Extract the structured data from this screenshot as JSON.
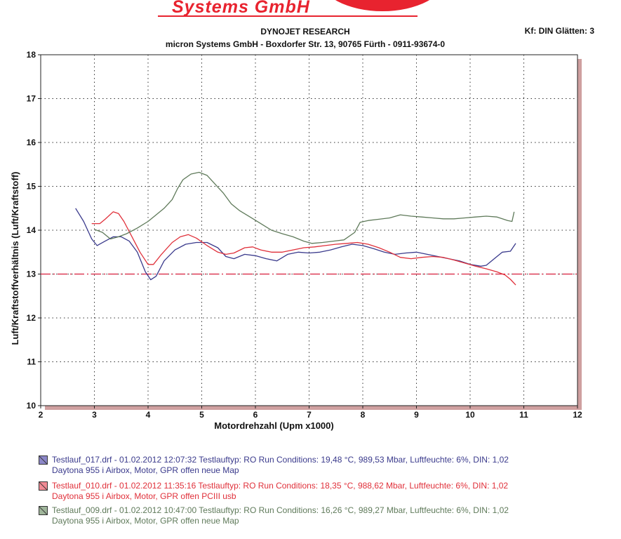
{
  "header": {
    "logo_text": "Systems GmbH",
    "title": "DYNOJET RESEARCH",
    "subtitle": "micron Systems GmbH - Boxdorfer Str. 13, 90765 Fürth - 0911-93674-0",
    "kf": "Kf: DIN  Glätten: 3"
  },
  "colors": {
    "series_blue": "#3a3a8c",
    "series_red": "#e0303a",
    "series_green": "#5f7a5a",
    "reference": "#d81e3c",
    "frame": "#cfa0a0"
  },
  "legend": [
    {
      "line1": "Testlauf_017.drf - 01.02.2012 12:07:32  Testlauftyp: RO  Run Conditions: 19,48 °C, 989,53 Mbar,  Luftfeuchte: 6%, DIN: 1,02",
      "line2": "Daytona 955 i Airbox, Motor, GPR offen neue Map",
      "color": "#3a3a8c",
      "swatch": "#8c87c8"
    },
    {
      "line1": "Testlauf_010.drf - 01.02.2012 11:35:16  Testlauftyp: RO  Run Conditions: 18,35 °C, 988,62 Mbar,  Luftfeuchte: 6%, DIN: 1,02",
      "line2": "Daytona 955 i Airbox, Motor, GPR offen PCIII usb",
      "color": "#e0303a",
      "swatch": "#f08a94"
    },
    {
      "line1": "Testlauf_009.drf - 01.02.2012 10:47:00  Testlauftyp: RO  Run Conditions: 16,26 °C, 989,27 Mbar,  Luftfeuchte: 6%, DIN: 1,02",
      "line2": "Daytona 955 i Airbox, Motor, GPR offen neue Map",
      "color": "#5f7a5a",
      "swatch": "#9fb59a"
    }
  ],
  "chart_data": {
    "type": "line",
    "xlabel": "Motordrehzahl (Upm x1000)",
    "ylabel": "Luft/Kraftstoffverhältnis (Luft/Kraftstoff)",
    "xlim": [
      2,
      12
    ],
    "ylim": [
      10,
      18
    ],
    "xticks": [
      2,
      3,
      4,
      5,
      6,
      7,
      8,
      9,
      10,
      11,
      12
    ],
    "yticks": [
      10,
      11,
      12,
      13,
      14,
      15,
      16,
      17,
      18
    ],
    "grid": true,
    "reference_line": {
      "y": 13.0,
      "style": "dash-dot"
    },
    "series": [
      {
        "name": "Testlauf_017",
        "color": "#3a3a8c",
        "points": [
          [
            2.65,
            14.5
          ],
          [
            2.8,
            14.2
          ],
          [
            2.95,
            13.8
          ],
          [
            3.05,
            13.65
          ],
          [
            3.2,
            13.75
          ],
          [
            3.35,
            13.85
          ],
          [
            3.5,
            13.85
          ],
          [
            3.65,
            13.75
          ],
          [
            3.8,
            13.5
          ],
          [
            3.95,
            13.05
          ],
          [
            4.05,
            12.87
          ],
          [
            4.15,
            12.95
          ],
          [
            4.3,
            13.3
          ],
          [
            4.5,
            13.55
          ],
          [
            4.7,
            13.68
          ],
          [
            4.9,
            13.72
          ],
          [
            5.1,
            13.72
          ],
          [
            5.3,
            13.6
          ],
          [
            5.45,
            13.4
          ],
          [
            5.6,
            13.35
          ],
          [
            5.8,
            13.45
          ],
          [
            6.0,
            13.42
          ],
          [
            6.2,
            13.35
          ],
          [
            6.4,
            13.3
          ],
          [
            6.6,
            13.45
          ],
          [
            6.8,
            13.5
          ],
          [
            7.0,
            13.48
          ],
          [
            7.2,
            13.5
          ],
          [
            7.4,
            13.55
          ],
          [
            7.6,
            13.62
          ],
          [
            7.8,
            13.68
          ],
          [
            8.0,
            13.65
          ],
          [
            8.2,
            13.58
          ],
          [
            8.4,
            13.5
          ],
          [
            8.6,
            13.45
          ],
          [
            8.8,
            13.48
          ],
          [
            9.0,
            13.5
          ],
          [
            9.2,
            13.45
          ],
          [
            9.4,
            13.4
          ],
          [
            9.6,
            13.35
          ],
          [
            9.8,
            13.3
          ],
          [
            10.0,
            13.22
          ],
          [
            10.2,
            13.18
          ],
          [
            10.3,
            13.2
          ],
          [
            10.45,
            13.35
          ],
          [
            10.6,
            13.5
          ],
          [
            10.75,
            13.52
          ],
          [
            10.85,
            13.7
          ]
        ]
      },
      {
        "name": "Testlauf_010",
        "color": "#e0303a",
        "points": [
          [
            2.95,
            14.15
          ],
          [
            3.1,
            14.15
          ],
          [
            3.2,
            14.25
          ],
          [
            3.35,
            14.42
          ],
          [
            3.45,
            14.38
          ],
          [
            3.55,
            14.2
          ],
          [
            3.7,
            13.85
          ],
          [
            3.85,
            13.5
          ],
          [
            4.0,
            13.22
          ],
          [
            4.1,
            13.22
          ],
          [
            4.25,
            13.45
          ],
          [
            4.45,
            13.72
          ],
          [
            4.6,
            13.85
          ],
          [
            4.75,
            13.9
          ],
          [
            4.9,
            13.82
          ],
          [
            5.1,
            13.65
          ],
          [
            5.3,
            13.5
          ],
          [
            5.45,
            13.45
          ],
          [
            5.6,
            13.48
          ],
          [
            5.8,
            13.6
          ],
          [
            5.95,
            13.62
          ],
          [
            6.1,
            13.55
          ],
          [
            6.3,
            13.5
          ],
          [
            6.5,
            13.5
          ],
          [
            6.7,
            13.55
          ],
          [
            6.9,
            13.6
          ],
          [
            7.1,
            13.62
          ],
          [
            7.3,
            13.65
          ],
          [
            7.5,
            13.68
          ],
          [
            7.7,
            13.7
          ],
          [
            7.9,
            13.72
          ],
          [
            8.1,
            13.68
          ],
          [
            8.3,
            13.6
          ],
          [
            8.5,
            13.5
          ],
          [
            8.7,
            13.38
          ],
          [
            8.9,
            13.35
          ],
          [
            9.1,
            13.38
          ],
          [
            9.3,
            13.4
          ],
          [
            9.5,
            13.38
          ],
          [
            9.7,
            13.32
          ],
          [
            9.9,
            13.25
          ],
          [
            10.1,
            13.18
          ],
          [
            10.3,
            13.12
          ],
          [
            10.5,
            13.05
          ],
          [
            10.65,
            12.98
          ],
          [
            10.75,
            12.88
          ],
          [
            10.85,
            12.75
          ]
        ]
      },
      {
        "name": "Testlauf_009",
        "color": "#5f7a5a",
        "points": [
          [
            3.0,
            14.02
          ],
          [
            3.15,
            13.95
          ],
          [
            3.3,
            13.8
          ],
          [
            3.45,
            13.85
          ],
          [
            3.6,
            13.92
          ],
          [
            3.8,
            14.05
          ],
          [
            4.0,
            14.2
          ],
          [
            4.15,
            14.35
          ],
          [
            4.3,
            14.5
          ],
          [
            4.45,
            14.7
          ],
          [
            4.55,
            14.95
          ],
          [
            4.65,
            15.15
          ],
          [
            4.8,
            15.28
          ],
          [
            4.95,
            15.32
          ],
          [
            5.1,
            15.25
          ],
          [
            5.25,
            15.05
          ],
          [
            5.4,
            14.85
          ],
          [
            5.55,
            14.6
          ],
          [
            5.7,
            14.45
          ],
          [
            5.9,
            14.3
          ],
          [
            6.1,
            14.15
          ],
          [
            6.3,
            14.0
          ],
          [
            6.5,
            13.92
          ],
          [
            6.7,
            13.85
          ],
          [
            6.9,
            13.75
          ],
          [
            7.05,
            13.7
          ],
          [
            7.25,
            13.72
          ],
          [
            7.45,
            13.75
          ],
          [
            7.65,
            13.78
          ],
          [
            7.85,
            13.95
          ],
          [
            7.95,
            14.18
          ],
          [
            8.1,
            14.22
          ],
          [
            8.3,
            14.25
          ],
          [
            8.5,
            14.28
          ],
          [
            8.7,
            14.35
          ],
          [
            8.9,
            14.32
          ],
          [
            9.1,
            14.3
          ],
          [
            9.3,
            14.28
          ],
          [
            9.5,
            14.26
          ],
          [
            9.7,
            14.26
          ],
          [
            9.9,
            14.28
          ],
          [
            10.1,
            14.3
          ],
          [
            10.3,
            14.32
          ],
          [
            10.5,
            14.3
          ],
          [
            10.7,
            14.22
          ],
          [
            10.78,
            14.2
          ],
          [
            10.82,
            14.42
          ]
        ]
      }
    ]
  }
}
